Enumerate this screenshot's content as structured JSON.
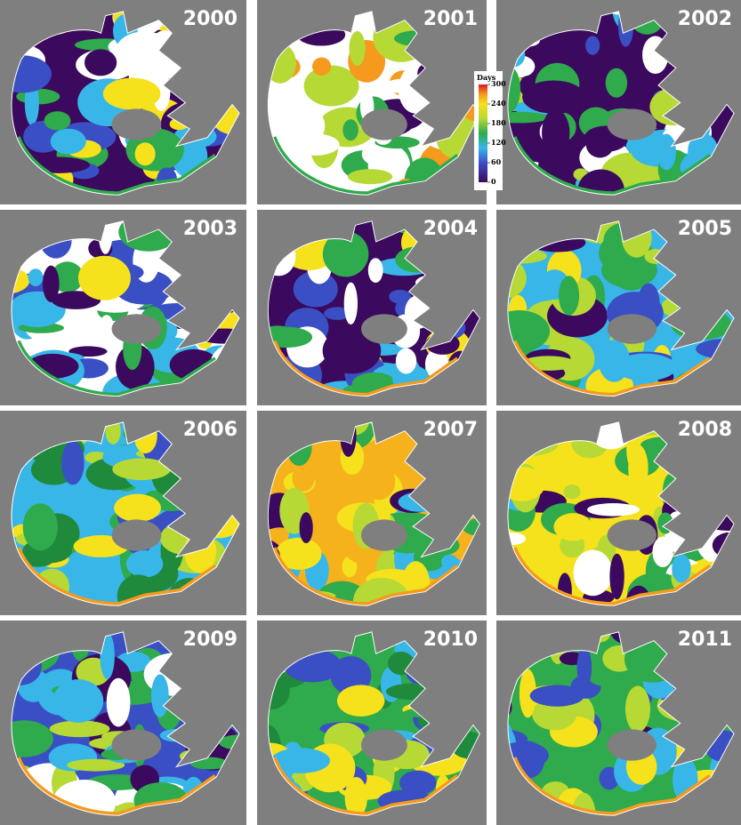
{
  "panels": [
    {
      "year": "2000"
    },
    {
      "year": "2001"
    },
    {
      "year": "2002"
    },
    {
      "year": "2003"
    },
    {
      "year": "2004"
    },
    {
      "year": "2005"
    },
    {
      "year": "2006"
    },
    {
      "year": "2007"
    },
    {
      "year": "2008"
    },
    {
      "year": "2009"
    },
    {
      "year": "2010"
    },
    {
      "year": "2011"
    }
  ],
  "legend": {
    "title": "Days",
    "ticks": [
      300,
      240,
      180,
      120,
      60,
      0
    ]
  }
}
